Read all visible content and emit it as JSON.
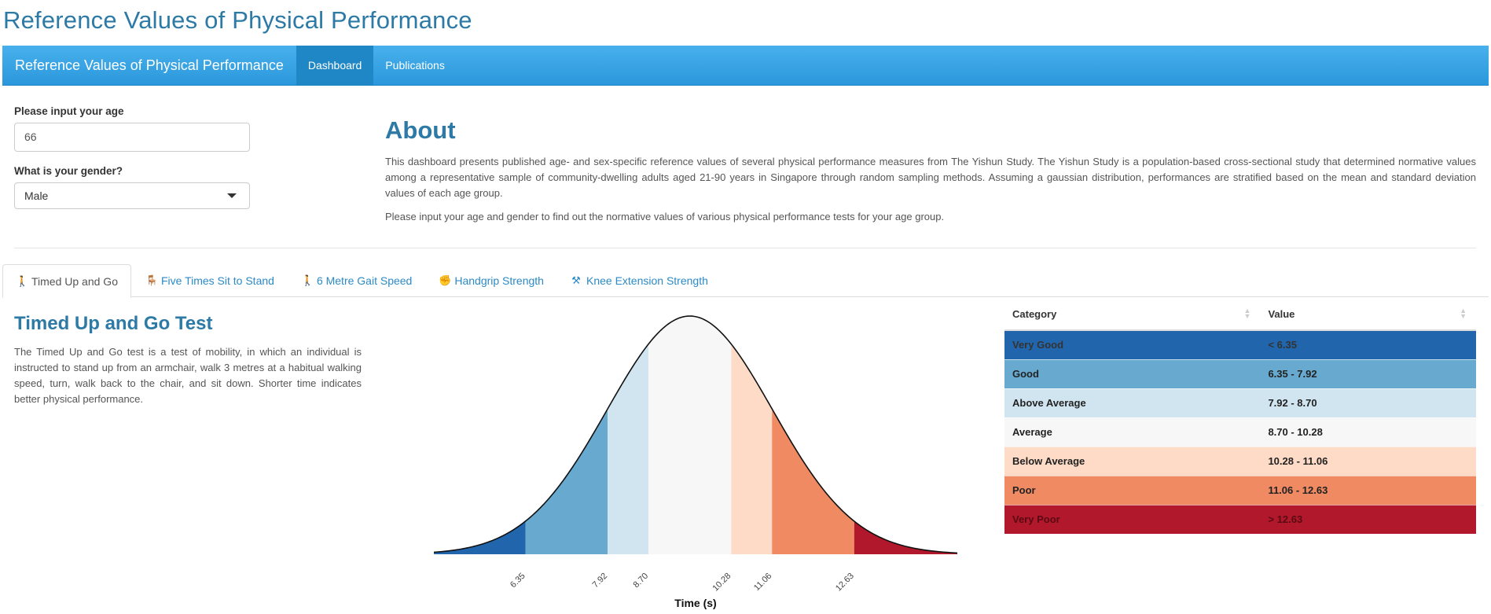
{
  "page": {
    "title": "Reference Values of Physical Performance"
  },
  "navbar": {
    "brand": "Reference Values of Physical Performance",
    "items": [
      {
        "label": "Dashboard",
        "active": true
      },
      {
        "label": "Publications",
        "active": false
      }
    ]
  },
  "sidebar": {
    "age_label": "Please input your age",
    "age_value": "66",
    "gender_label": "What is your gender?",
    "gender_value": "Male"
  },
  "about": {
    "title": "About",
    "paragraph1": "This dashboard presents published age- and sex-specific reference values of several physical performance measures from The Yishun Study. The Yishun Study is a population-based cross-sectional study that determined normative values among a representative sample of community-dwelling adults aged 21-90 years in Singapore through random sampling methods. Assuming a gaussian distribution, performances are stratified based on the mean and standard deviation values of each age group.",
    "paragraph2": "Please input your age and gender to find out the normative values of various physical performance tests for your age group."
  },
  "tabs": [
    {
      "label": "Timed Up and Go",
      "icon": "walking-icon",
      "glyph": "🚶",
      "active": true
    },
    {
      "label": "Five Times Sit to Stand",
      "icon": "chair-icon",
      "glyph": "🪑",
      "active": false
    },
    {
      "label": "6 Metre Gait Speed",
      "icon": "walking-icon",
      "glyph": "🚶",
      "active": false
    },
    {
      "label": "Handgrip Strength",
      "icon": "fist-icon",
      "glyph": "✊",
      "active": false
    },
    {
      "label": "Knee Extension Strength",
      "icon": "dumbbell-icon",
      "glyph": "⚒",
      "active": false
    }
  ],
  "test": {
    "title": "Timed Up and Go Test",
    "description": "The Timed Up and Go test is a test of mobility, in which an individual is instructed to stand up from an armchair, walk 3 metres at a habitual walking speed, turn, walk back to the chair, and sit down. Shorter time indicates better physical performance."
  },
  "table": {
    "headers": [
      "Category",
      "Value"
    ],
    "rows": [
      {
        "category": "Very Good",
        "value": "< 6.35",
        "bg": "#2166ac",
        "fg": "#333333"
      },
      {
        "category": "Good",
        "value": "6.35 - 7.92",
        "bg": "#67a9cf",
        "fg": "#222222"
      },
      {
        "category": "Above Average",
        "value": "7.92 - 8.70",
        "bg": "#d1e5f0",
        "fg": "#222222"
      },
      {
        "category": "Average",
        "value": "8.70 - 10.28",
        "bg": "#f7f7f7",
        "fg": "#222222"
      },
      {
        "category": "Below Average",
        "value": "10.28 - 11.06",
        "bg": "#fddbc7",
        "fg": "#222222"
      },
      {
        "category": "Poor",
        "value": "11.06 - 12.63",
        "bg": "#ef8a62",
        "fg": "#222222"
      },
      {
        "category": "Very Poor",
        "value": "> 12.63",
        "bg": "#b2182b",
        "fg": "#5a0a12"
      }
    ]
  },
  "chart_data": {
    "type": "area",
    "distribution": "normal",
    "mean": 9.49,
    "sd": 1.58,
    "xlim": [
      4.6,
      14.6
    ],
    "cutpoints": [
      6.35,
      7.92,
      8.7,
      10.28,
      11.06,
      12.63
    ],
    "tick_labels": [
      "6.35",
      "7.92",
      "8.70",
      "10.28",
      "11.06",
      "12.63"
    ],
    "band_colors": [
      "#2166ac",
      "#67a9cf",
      "#d1e5f0",
      "#f7f7f7",
      "#fddbc7",
      "#ef8a62",
      "#b2182b"
    ],
    "xlabel": "Time (s)",
    "ylabel": "",
    "grid": false,
    "legend": "none"
  }
}
